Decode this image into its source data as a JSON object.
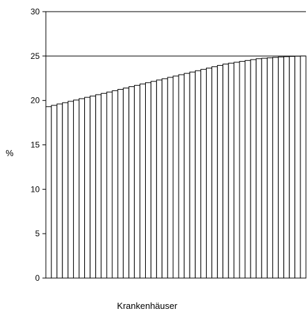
{
  "chart_data": {
    "type": "bar",
    "title": "",
    "xlabel": "Krankenhäuser",
    "ylabel": "%",
    "ylim": [
      0,
      30
    ],
    "yticks": [
      "0",
      "5",
      "10",
      "15",
      "20",
      "25",
      "30"
    ],
    "grid": true,
    "bar_count": 47,
    "values": [
      19.3,
      19.45,
      19.6,
      19.75,
      19.9,
      20.05,
      20.2,
      20.35,
      20.5,
      20.65,
      20.8,
      20.95,
      21.1,
      21.25,
      21.4,
      21.55,
      21.7,
      21.85,
      22.0,
      22.15,
      22.3,
      22.45,
      22.6,
      22.75,
      22.9,
      23.05,
      23.2,
      23.35,
      23.5,
      23.65,
      23.8,
      23.95,
      24.1,
      24.2,
      24.3,
      24.4,
      24.5,
      24.6,
      24.7,
      24.75,
      24.8,
      24.85,
      24.9,
      24.93,
      24.96,
      24.98,
      25.0
    ],
    "colors": {
      "bar_fill": "#ffffff",
      "bar_stroke": "#000000",
      "grid": "#000000"
    }
  }
}
